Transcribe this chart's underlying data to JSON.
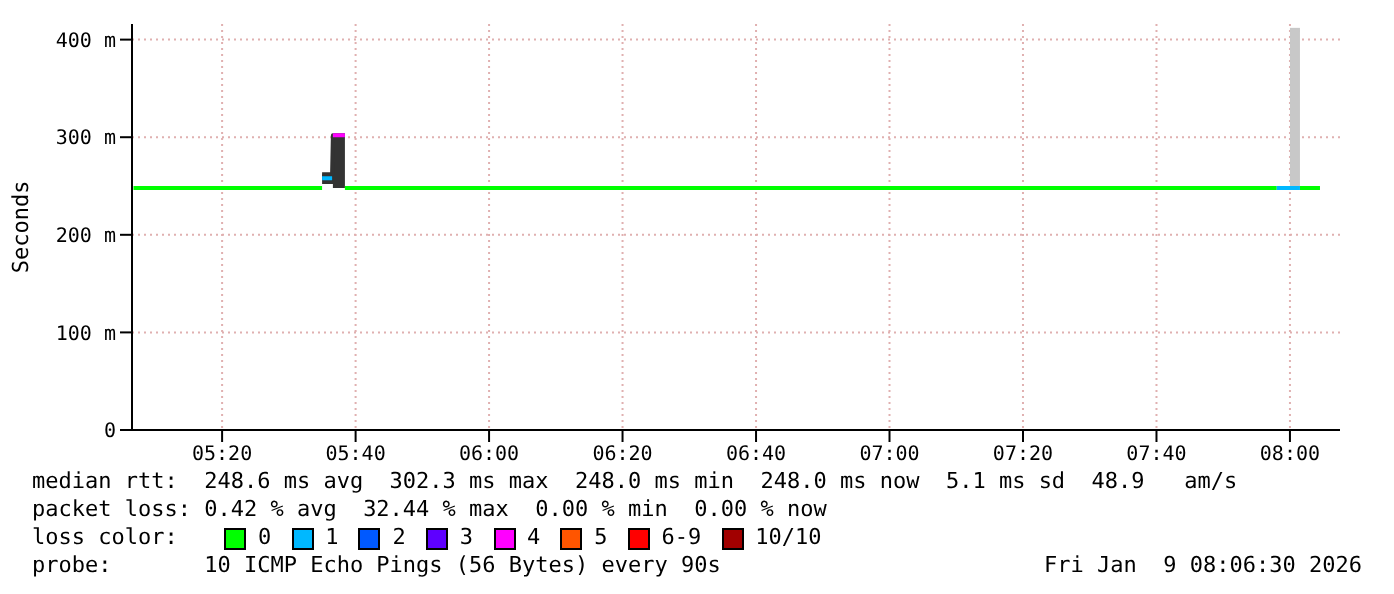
{
  "chart_data": {
    "type": "line",
    "ylabel": "Seconds",
    "xlim": [
      5.1083,
      8.125
    ],
    "ylim": [
      0,
      416
    ],
    "xticks": [
      {
        "value": 5.3333,
        "label": "05:20"
      },
      {
        "value": 5.6667,
        "label": "05:40"
      },
      {
        "value": 6,
        "label": "06:00"
      },
      {
        "value": 6.3333,
        "label": "06:20"
      },
      {
        "value": 6.6667,
        "label": "06:40"
      },
      {
        "value": 7,
        "label": "07:00"
      },
      {
        "value": 7.3333,
        "label": "07:20"
      },
      {
        "value": 7.6667,
        "label": "07:40"
      },
      {
        "value": 8,
        "label": "08:00"
      }
    ],
    "yticks": [
      0,
      {
        "value": 100,
        "label": "100 m"
      },
      {
        "value": 200,
        "label": "200 m"
      },
      {
        "value": 300,
        "label": "300 m"
      },
      {
        "value": 400,
        "label": "400 m"
      }
    ],
    "grid": true,
    "legend": "bottom",
    "legend_title": "loss color:",
    "series": [
      {
        "color": "#333333",
        "x": [
          5.583,
          5.608,
          5.61,
          5.64
        ],
        "values": [
          262,
          262,
          302,
          302
        ],
        "lower": [
          252,
          252,
          248,
          248
        ],
        "upper": [
          262,
          262,
          302,
          302
        ]
      },
      {
        "color": "#c8c8c8",
        "x": [
          8.0,
          8.025
        ],
        "values": [
          410,
          410
        ],
        "lower": [
          248,
          248
        ],
        "upper": [
          410,
          410
        ]
      },
      {
        "name": "0",
        "color": "#00ff00",
        "x": [
          5.112,
          5.583,
          5.6,
          5.64,
          7.967,
          7.99,
          8.025,
          8.075
        ],
        "values": [
          248,
          248,
          null,
          248,
          248,
          null,
          248,
          248
        ]
      },
      {
        "name": "1",
        "color": "#00b8ff",
        "x": [
          5.583,
          5.608,
          5.609,
          7.967,
          8.025
        ],
        "values": [
          258,
          258,
          null,
          248,
          248
        ]
      },
      {
        "name": "2",
        "color": "#0059ff"
      },
      {
        "name": "3",
        "color": "#5e00ff"
      },
      {
        "name": "4",
        "color": "#ff00ff",
        "x": [
          5.61,
          5.64
        ],
        "values": [
          302,
          302
        ]
      },
      {
        "name": "5",
        "color": "#ff5500"
      },
      {
        "name": "6-9",
        "color": "#ff0000"
      },
      {
        "name": "10/10",
        "color": "#a10000"
      }
    ],
    "annotations": [
      "median rtt:  248.6 ms avg  302.3 ms max  248.0 ms min  248.0 ms now  5.1 ms sd  48.9   am/s",
      "packet loss: 0.42 % avg  32.44 % max  0.00 % min  0.00 % now",
      "probe:       10 ICMP Echo Pings (56 Bytes) every 90s",
      "Fri Jan  9 08:06:30 2026"
    ]
  }
}
